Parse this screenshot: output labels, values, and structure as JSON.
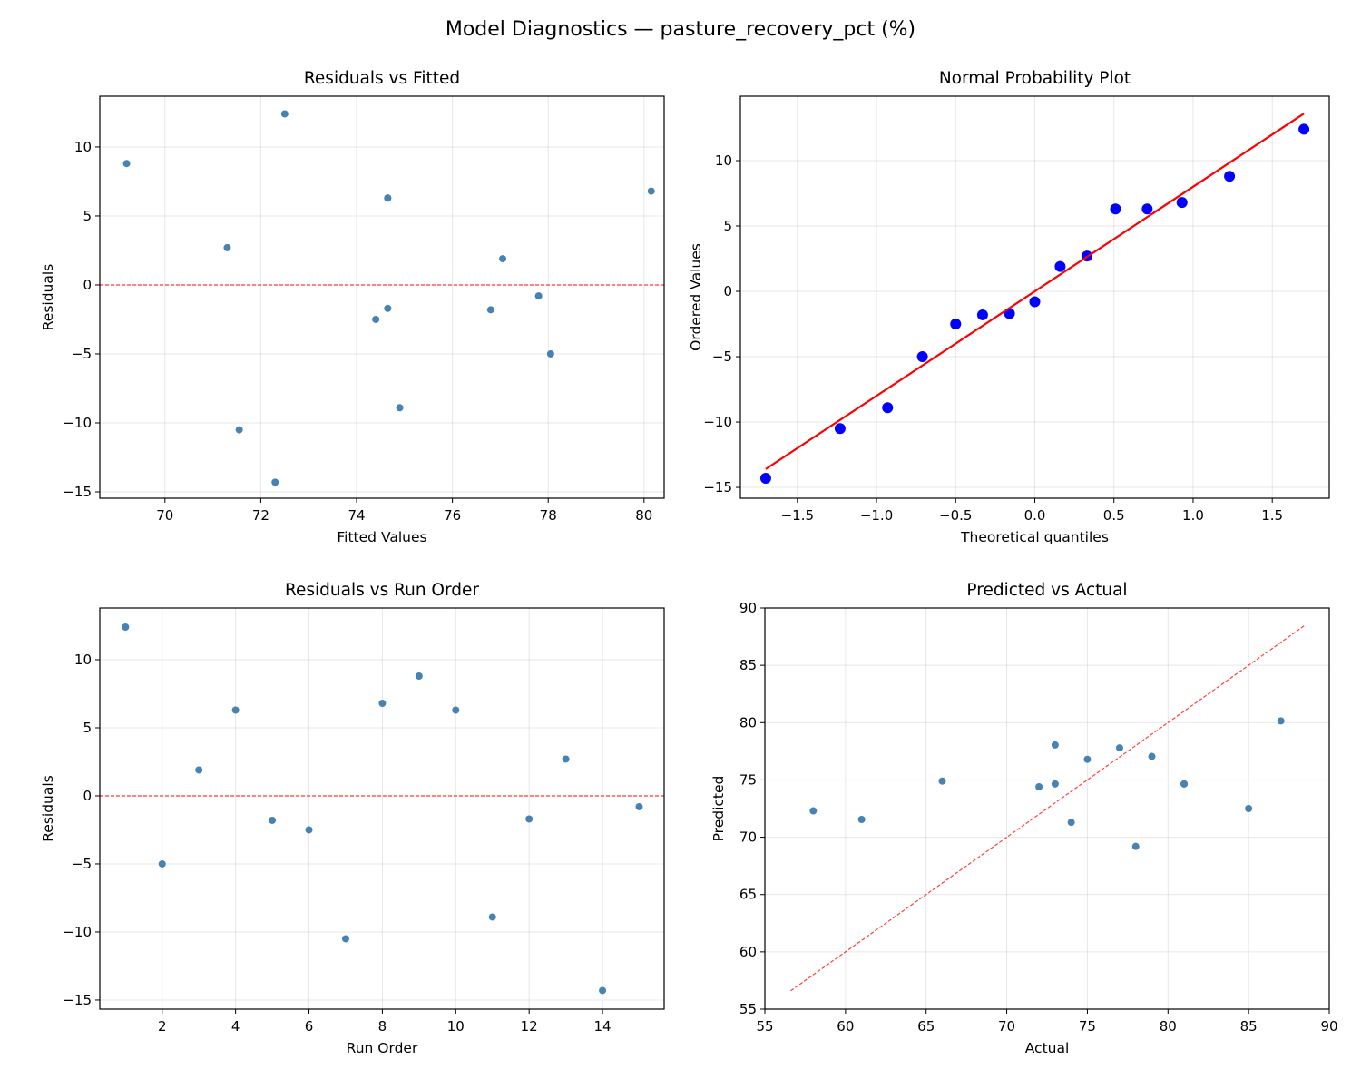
{
  "suptitle": "Model Diagnostics — pasture_recovery_pct (%)",
  "chart_data": [
    {
      "type": "scatter",
      "title": "Residuals vs Fitted",
      "xlabel": "Fitted Values",
      "ylabel": "Residuals",
      "xlim": [
        68.64,
        80.42
      ],
      "ylim": [
        -15.46,
        13.68
      ],
      "xticks": [
        70,
        72,
        74,
        76,
        78,
        80
      ],
      "yticks": [
        -15,
        -10,
        -5,
        0,
        5,
        10
      ],
      "grid": true,
      "marker_color": "#4682b4",
      "x": [
        72.5,
        78.05,
        77.05,
        74.65,
        76.8,
        74.4,
        71.55,
        80.15,
        69.2,
        74.65,
        74.9,
        74.65,
        71.3,
        72.3,
        77.8
      ],
      "y": [
        12.4,
        -5.0,
        1.9,
        6.3,
        -1.8,
        -2.5,
        -10.5,
        6.8,
        8.8,
        6.3,
        -8.9,
        -1.7,
        2.7,
        -14.3,
        -0.8
      ],
      "reference_line": {
        "type": "horizontal",
        "y": 0,
        "color": "#ff0000",
        "style": "dashed"
      }
    },
    {
      "type": "scatter",
      "title": "Normal Probability Plot",
      "xlabel": "Theoretical quantiles",
      "ylabel": "Ordered Values",
      "xlim": [
        -1.86,
        1.86
      ],
      "ylim": [
        -15.83,
        14.93
      ],
      "xticks": [
        -1.5,
        -1.0,
        -0.5,
        0.0,
        0.5,
        1.0,
        1.5
      ],
      "yticks": [
        -15,
        -10,
        -5,
        0,
        5,
        10
      ],
      "grid": true,
      "marker_color": "#0000ff",
      "x": [
        -1.7,
        -1.23,
        -0.93,
        -0.71,
        -0.5,
        -0.33,
        -0.16,
        0.0,
        0.16,
        0.33,
        0.51,
        0.71,
        0.93,
        1.23,
        1.7
      ],
      "y": [
        -14.3,
        -10.5,
        -8.9,
        -5.0,
        -2.5,
        -1.8,
        -1.7,
        -0.8,
        1.9,
        2.7,
        6.3,
        6.3,
        6.8,
        8.8,
        12.4
      ],
      "fit_line": {
        "slope": 8.0,
        "intercept": 0.0,
        "x_range": [
          -1.7,
          1.7
        ],
        "color": "#ff0000",
        "style": "solid"
      }
    },
    {
      "type": "scatter",
      "title": "Residuals vs Run Order",
      "xlabel": "Run Order",
      "ylabel": "Residuals",
      "xlim": [
        0.3,
        15.68
      ],
      "ylim": [
        -15.67,
        13.8
      ],
      "xticks": [
        2,
        4,
        6,
        8,
        10,
        12,
        14
      ],
      "yticks": [
        -15,
        -10,
        -5,
        0,
        5,
        10
      ],
      "grid": true,
      "marker_color": "#4682b4",
      "x": [
        1,
        2,
        3,
        4,
        5,
        6,
        7,
        8,
        9,
        10,
        11,
        12,
        13,
        14,
        15
      ],
      "y": [
        12.4,
        -5.0,
        1.9,
        6.3,
        -1.8,
        -2.5,
        -10.5,
        6.8,
        8.8,
        6.3,
        -8.9,
        -1.7,
        2.7,
        -14.3,
        -0.8
      ],
      "reference_line": {
        "type": "horizontal",
        "y": 0,
        "color": "#ff0000",
        "style": "dashed"
      }
    },
    {
      "type": "scatter",
      "title": "Predicted vs Actual",
      "xlabel": "Actual",
      "ylabel": "Predicted",
      "xlim": [
        55,
        90
      ],
      "ylim": [
        55,
        90
      ],
      "xticks": [
        55,
        60,
        65,
        70,
        75,
        80,
        85,
        90
      ],
      "yticks": [
        55,
        60,
        65,
        70,
        75,
        80,
        85,
        90
      ],
      "grid": true,
      "marker_color": "#4682b4",
      "x": [
        85,
        73,
        79,
        81,
        75,
        72,
        61,
        87,
        78,
        81,
        66,
        73,
        74,
        58,
        77
      ],
      "y": [
        72.5,
        78.05,
        77.05,
        74.65,
        76.8,
        74.4,
        71.55,
        80.15,
        69.2,
        74.65,
        74.9,
        74.65,
        71.3,
        72.3,
        77.8
      ],
      "reference_line": {
        "type": "diagonal",
        "range": [
          56.6,
          88.5
        ],
        "color": "#ff0000",
        "style": "dashed"
      }
    }
  ]
}
